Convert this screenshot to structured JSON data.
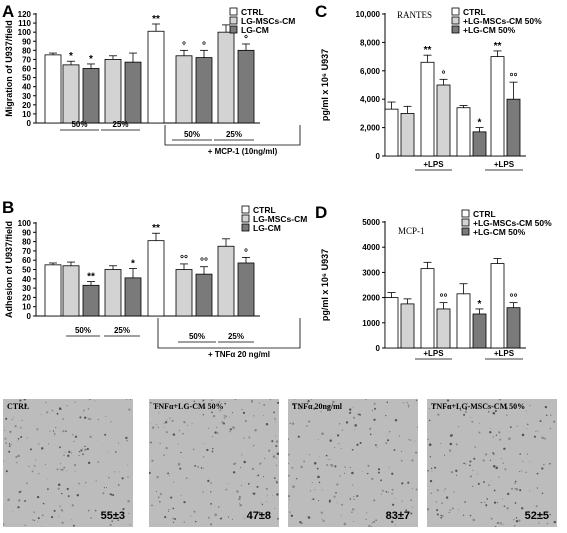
{
  "chart_data": [
    {
      "panel": "A",
      "type": "bar",
      "ylabel": "Migration of U937/field",
      "ylim": [
        0,
        120
      ],
      "yticks": [
        0,
        10,
        20,
        30,
        40,
        50,
        60,
        70,
        80,
        90,
        100,
        110,
        120
      ],
      "legend": [
        "CTRL",
        "LG-MSCs-CM",
        "LG-CM"
      ],
      "legend_colors": [
        "#ffffff",
        "#d3d3d3",
        "#7a7a7a"
      ],
      "bars": [
        {
          "series": 0,
          "value": 75,
          "err": 2,
          "sig": ""
        },
        {
          "series": 1,
          "value": 64,
          "err": 4,
          "sig": "*"
        },
        {
          "series": 2,
          "value": 60,
          "err": 5,
          "sig": "*"
        },
        {
          "series": 1,
          "value": 70,
          "err": 4,
          "sig": ""
        },
        {
          "series": 2,
          "value": 67,
          "err": 10,
          "sig": ""
        },
        {
          "series": 0,
          "value": 101,
          "err": 8,
          "sig": "**"
        },
        {
          "series": 1,
          "value": 74,
          "err": 6,
          "sig": "°"
        },
        {
          "series": 2,
          "value": 72,
          "err": 8,
          "sig": "°"
        },
        {
          "series": 1,
          "value": 100,
          "err": 8,
          "sig": ""
        },
        {
          "series": 2,
          "value": 80,
          "err": 7,
          "sig": "°"
        }
      ],
      "group_labels": [
        "50%",
        "25%",
        "50%",
        "25%"
      ],
      "bracket_label": "+ MCP-1 (10ng/ml)"
    },
    {
      "panel": "B",
      "type": "bar",
      "ylabel": "Adhesion of U937/field",
      "ylim": [
        0,
        100
      ],
      "yticks": [
        0,
        10,
        20,
        30,
        40,
        50,
        60,
        70,
        80,
        90,
        100
      ],
      "legend": [
        "CTRL",
        "LG-MSCs-CM",
        "LG-CM"
      ],
      "legend_colors": [
        "#ffffff",
        "#d3d3d3",
        "#7a7a7a"
      ],
      "bars": [
        {
          "series": 0,
          "value": 55,
          "err": 2,
          "sig": ""
        },
        {
          "series": 1,
          "value": 54,
          "err": 4,
          "sig": ""
        },
        {
          "series": 2,
          "value": 33,
          "err": 4,
          "sig": "**"
        },
        {
          "series": 1,
          "value": 50,
          "err": 4,
          "sig": ""
        },
        {
          "series": 2,
          "value": 41,
          "err": 10,
          "sig": "*"
        },
        {
          "series": 0,
          "value": 81,
          "err": 8,
          "sig": "**"
        },
        {
          "series": 1,
          "value": 50,
          "err": 6,
          "sig": "°°"
        },
        {
          "series": 2,
          "value": 45,
          "err": 8,
          "sig": "°°"
        },
        {
          "series": 1,
          "value": 75,
          "err": 8,
          "sig": ""
        },
        {
          "series": 2,
          "value": 57,
          "err": 6,
          "sig": "°"
        }
      ],
      "group_labels": [
        "50%",
        "25%",
        "50%",
        "25%"
      ],
      "bracket_label": "+ TNFα 20 ng/ml"
    },
    {
      "panel": "C",
      "type": "bar",
      "title": "RANTES",
      "ylabel": "pg/ml x 10⁶ U937",
      "ylim": [
        0,
        10000
      ],
      "yticks": [
        0,
        2000,
        4000,
        6000,
        8000,
        10000
      ],
      "ytick_labels": [
        "0",
        "2,000",
        "4,000",
        "6,000",
        "8,000",
        "10,000"
      ],
      "legend": [
        "CTRL",
        "+LG-MSCs-CM 50%",
        "+LG-CM 50%"
      ],
      "legend_colors": [
        "#ffffff",
        "#d3d3d3",
        "#7a7a7a"
      ],
      "bars": [
        {
          "series": 0,
          "value": 3300,
          "err": 500,
          "sig": ""
        },
        {
          "series": 1,
          "value": 3000,
          "err": 500,
          "sig": ""
        },
        {
          "series": 0,
          "value": 6600,
          "err": 500,
          "sig": "**"
        },
        {
          "series": 1,
          "value": 5000,
          "err": 400,
          "sig": "°"
        },
        {
          "series": 0,
          "value": 3400,
          "err": 150,
          "sig": ""
        },
        {
          "series": 2,
          "value": 1700,
          "err": 300,
          "sig": "*"
        },
        {
          "series": 0,
          "value": 7000,
          "err": 400,
          "sig": "**"
        },
        {
          "series": 2,
          "value": 4000,
          "err": 1200,
          "sig": "°°"
        }
      ],
      "group_labels": [
        "+LPS",
        "+LPS"
      ]
    },
    {
      "panel": "D",
      "type": "bar",
      "title": "MCP-1",
      "ylabel": "pg/ml x 10⁶ U937",
      "ylim": [
        0,
        5000
      ],
      "yticks": [
        0,
        1000,
        2000,
        3000,
        4000,
        5000
      ],
      "ytick_labels": [
        "0",
        "1000",
        "2000",
        "3000",
        "4000",
        "5000"
      ],
      "legend": [
        "CTRL",
        "+LG-MSCs-CM 50%",
        "+LG-CM 50%"
      ],
      "legend_colors": [
        "#ffffff",
        "#d3d3d3",
        "#7a7a7a"
      ],
      "bars": [
        {
          "series": 0,
          "value": 2000,
          "err": 200,
          "sig": ""
        },
        {
          "series": 1,
          "value": 1750,
          "err": 200,
          "sig": ""
        },
        {
          "series": 0,
          "value": 3150,
          "err": 250,
          "sig": ""
        },
        {
          "series": 1,
          "value": 1550,
          "err": 250,
          "sig": "°°"
        },
        {
          "series": 0,
          "value": 2150,
          "err": 400,
          "sig": ""
        },
        {
          "series": 2,
          "value": 1350,
          "err": 200,
          "sig": "*"
        },
        {
          "series": 0,
          "value": 3350,
          "err": 200,
          "sig": ""
        },
        {
          "series": 2,
          "value": 1600,
          "err": 200,
          "sig": "°°"
        }
      ],
      "group_labels": [
        "+LPS",
        "+LPS"
      ]
    }
  ],
  "micrographs": [
    {
      "caption": "CTRL",
      "count": "55±3"
    },
    {
      "caption": "TNFα+LG-CM 50%",
      "count": "47±8"
    },
    {
      "caption": "TNFα 20ng/ml",
      "count": "83±7"
    },
    {
      "caption": "TNFα+LG-MSCs-CM 50%",
      "count": "52±5"
    }
  ]
}
